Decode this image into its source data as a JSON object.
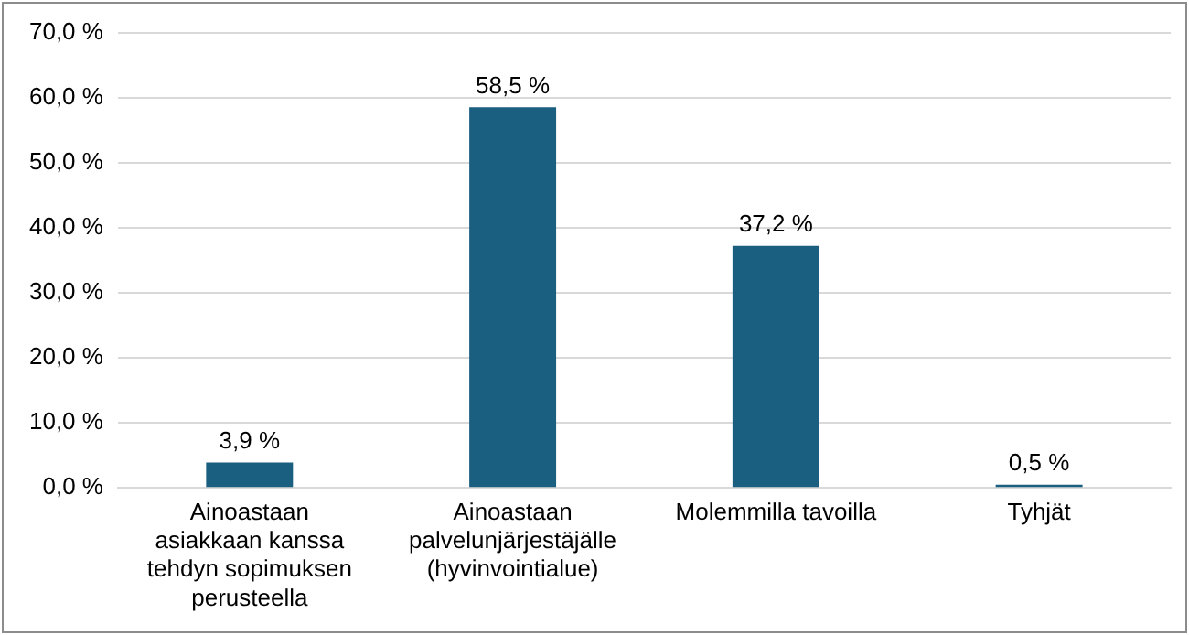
{
  "chart_data": {
    "type": "bar",
    "categories": [
      "Ainoastaan asiakkaan kanssa tehdyn sopimuksen perusteella",
      "Ainoastaan palvelunjärjestäjälle (hyvinvointialue)",
      "Molemmilla tavoilla",
      "Tyhjät"
    ],
    "values": [
      3.9,
      58.5,
      37.2,
      0.5
    ],
    "color": "#1a5e80",
    "value_labels": [
      "3,9 %",
      "58,5 %",
      "37,2 %",
      "0,5 %"
    ],
    "ylim": [
      0,
      70
    ],
    "yticks": [
      {
        "value": 0,
        "label": "0,0 %"
      },
      {
        "value": 10,
        "label": "10,0 %"
      },
      {
        "value": 20,
        "label": "20,0 %"
      },
      {
        "value": 30,
        "label": "30,0 %"
      },
      {
        "value": 40,
        "label": "40,0 %"
      },
      {
        "value": 50,
        "label": "50,0 %"
      },
      {
        "value": 60,
        "label": "60,0 %"
      },
      {
        "value": 70,
        "label": "70,0 %"
      }
    ],
    "grid": "y"
  }
}
